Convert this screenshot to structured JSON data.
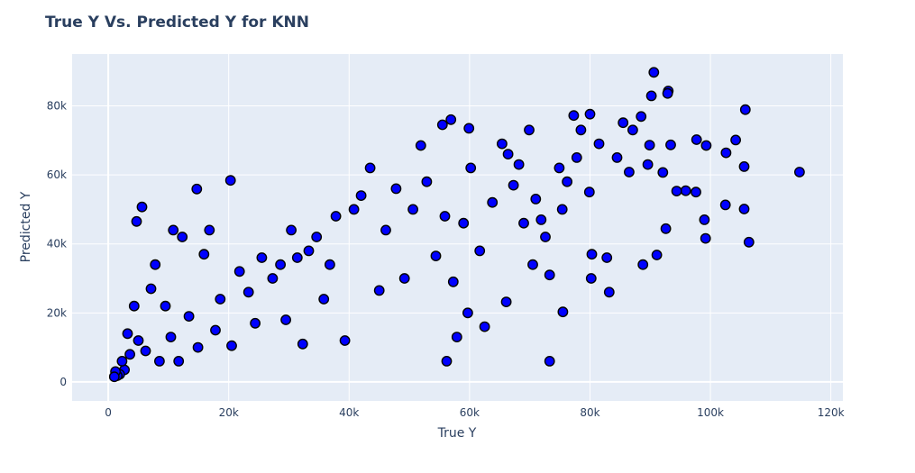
{
  "chart_data": {
    "type": "scatter",
    "title": "True Y Vs. Predicted Y for KNN",
    "xlabel": "True Y",
    "ylabel": "Predicted Y",
    "xlim": [
      -6000,
      122000
    ],
    "ylim": [
      -5500,
      95000
    ],
    "x_ticks": [
      0,
      20000,
      40000,
      60000,
      80000,
      100000,
      120000
    ],
    "x_tick_labels": [
      "0",
      "20k",
      "40k",
      "60k",
      "80k",
      "100k",
      "120k"
    ],
    "y_ticks": [
      0,
      20000,
      40000,
      60000,
      80000
    ],
    "y_tick_labels": [
      "0",
      "20k",
      "40k",
      "60k",
      "80k"
    ],
    "grid": true,
    "colors": {
      "marker_fill": "#0000ff",
      "marker_edge": "#000000",
      "plot_bg": "#e5ecf6",
      "text": "#2a3f5f"
    },
    "points_description": "dense cloud along the diagonal; representative sample plus outliers",
    "x": [
      114800,
      105800,
      105600,
      106400,
      105600,
      104200,
      102600,
      102500,
      99000,
      99200,
      99300,
      97700,
      97600,
      95900,
      94400,
      93400,
      93000,
      92900,
      92600,
      92100,
      91100,
      90600,
      90200,
      89900,
      89600,
      88800,
      88500,
      87100,
      86500,
      85500,
      84500,
      83200,
      82800,
      81500,
      80000,
      80200,
      80300,
      79900,
      78500,
      77800,
      77300,
      76200,
      75500,
      75400,
      74900,
      73300,
      73300,
      72600,
      71900,
      71000,
      70500,
      69900,
      69000,
      68200,
      67300,
      66400,
      66100,
      65400,
      63800,
      62500,
      61700,
      60200,
      59900,
      59700,
      59000,
      57900,
      57300,
      56900,
      56200,
      55900,
      55500,
      54400,
      52900,
      51900,
      50600,
      49200,
      47800,
      46100,
      45000,
      43500,
      42000,
      40800,
      39300,
      37800,
      36800,
      35800,
      34600,
      33300,
      32300,
      31400,
      30400,
      29500,
      28600,
      27300,
      25500,
      24400,
      23300,
      21800,
      20300,
      20500,
      18600,
      17800,
      16800,
      15900,
      14900,
      14700,
      13400,
      12300,
      11700,
      10800,
      10400,
      9500,
      8500,
      7800,
      7100,
      6200,
      5600,
      5000,
      4700,
      4300,
      3600,
      3200,
      2700,
      2300,
      1900,
      1500,
      1200,
      1000
    ],
    "y": [
      60800,
      78900,
      62400,
      40500,
      50100,
      70100,
      66400,
      51300,
      47000,
      41600,
      68500,
      70200,
      55000,
      55400,
      55300,
      68700,
      84300,
      83600,
      44400,
      60700,
      36800,
      89700,
      82900,
      68600,
      63000,
      34000,
      76900,
      73000,
      60800,
      75100,
      65000,
      26000,
      36000,
      69000,
      77600,
      30000,
      37000,
      55000,
      73000,
      65000,
      77200,
      58000,
      20300,
      50000,
      62000,
      6000,
      31000,
      42000,
      47000,
      53000,
      34000,
      73000,
      46000,
      63000,
      57000,
      66000,
      23200,
      69000,
      52000,
      16000,
      38000,
      62000,
      73500,
      20000,
      46000,
      13000,
      29000,
      76000,
      6000,
      48000,
      74500,
      36500,
      58000,
      68500,
      50000,
      30000,
      56000,
      44000,
      26500,
      62000,
      54000,
      50000,
      12000,
      48000,
      34000,
      24000,
      42000,
      38000,
      11000,
      36000,
      44000,
      18000,
      34000,
      30000,
      36000,
      17000,
      26000,
      32000,
      58400,
      10500,
      24000,
      15000,
      44000,
      37000,
      10000,
      55900,
      19000,
      42000,
      6000,
      44000,
      13000,
      22000,
      6000,
      34000,
      27000,
      9000,
      50700,
      12000,
      46500,
      22000,
      8000,
      14000,
      3500,
      6000,
      2200,
      1800,
      3000,
      1500
    ]
  }
}
